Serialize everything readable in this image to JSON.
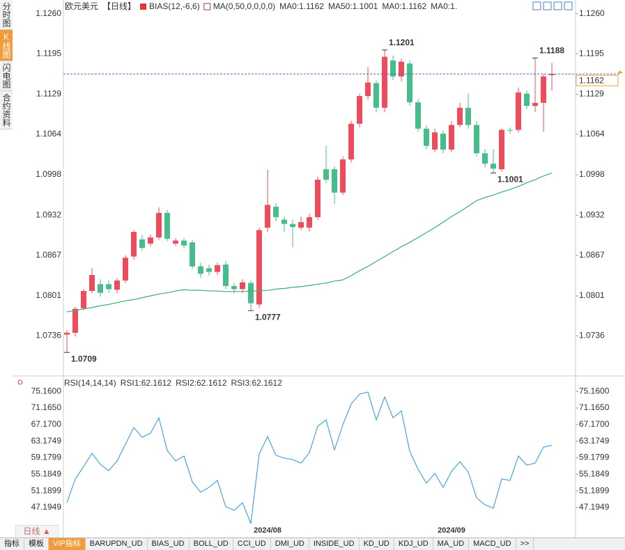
{
  "ui": {
    "sidebar": [
      "分时图",
      "K线图",
      "闪电图",
      "合约资料"
    ],
    "period": "日线 ▲",
    "tabs": [
      "指标",
      "模板",
      "VIP指标",
      "BARUPDN_UD",
      "BIAS_UD",
      "BOLL_UD",
      "CCI_UD",
      "DMI_UD",
      "INSIDE_UD",
      "KD_UD",
      "KDJ_UD",
      "MA_UD",
      "MACD_UD",
      ">>"
    ]
  },
  "chart_data": [
    {
      "type": "candlestick",
      "title": "欧元美元",
      "period": "【日线】",
      "indicators": [
        "BIAS(12,-6,6)",
        "MA(0,50,0,0,0,0)"
      ],
      "legend": [
        {
          "text": "MA0:1.1162",
          "color": "#4a90d9"
        },
        {
          "text": "MA50:1.1001",
          "color": "#3aae86"
        },
        {
          "text": "MA0:1.1162",
          "color": "#5aaae6"
        },
        {
          "text": "MA0:1.",
          "color": "#f0a050"
        }
      ],
      "categories": [
        null,
        null,
        null,
        null,
        null,
        null,
        null,
        null,
        null,
        null,
        null,
        null,
        null,
        null,
        null,
        null,
        null,
        null,
        null,
        null,
        null,
        null,
        null,
        null,
        "2024/08",
        null,
        null,
        null,
        null,
        null,
        null,
        null,
        null,
        null,
        null,
        null,
        null,
        null,
        null,
        null,
        null,
        null,
        null,
        null,
        null,
        null,
        "2024/09",
        null,
        null,
        null,
        null,
        null,
        null,
        null,
        null,
        null,
        null,
        null,
        null
      ],
      "open": [
        1.0738,
        1.0741,
        1.0781,
        1.0809,
        1.082,
        1.082,
        1.0811,
        1.0826,
        1.0865,
        1.0893,
        1.0886,
        1.0896,
        1.0936,
        1.0886,
        1.0891,
        1.0888,
        1.0849,
        1.0846,
        1.084,
        1.0852,
        1.0817,
        1.0812,
        1.0822,
        1.0787,
        1.0912,
        1.0946,
        1.0925,
        1.0918,
        1.0912,
        1.0912,
        1.0929,
        1.1007,
        1.1007,
        1.0969,
        1.1023,
        1.1081,
        1.1126,
        1.1147,
        1.1107,
        1.1184,
        1.1158,
        1.1179,
        1.1116,
        1.1073,
        1.1039,
        1.1065,
        1.1039,
        1.1079,
        1.1107,
        1.1079,
        1.1033,
        1.1016,
        1.1007,
        1.1071,
        1.1071,
        1.113,
        1.111,
        1.1115,
        1.116
      ],
      "high": [
        1.0745,
        1.0783,
        1.0812,
        1.0846,
        1.0828,
        1.0826,
        1.083,
        1.0867,
        1.0908,
        1.09,
        1.0901,
        1.0945,
        1.0941,
        1.0895,
        1.0895,
        1.0892,
        1.0855,
        1.0852,
        1.0855,
        1.0858,
        1.0822,
        1.0828,
        1.0826,
        1.0912,
        1.1006,
        1.0952,
        1.093,
        1.0925,
        1.093,
        1.0935,
        1.0995,
        1.1045,
        1.1012,
        1.1028,
        1.1086,
        1.113,
        1.1173,
        1.1152,
        1.1201,
        1.1192,
        1.1187,
        1.1184,
        1.1121,
        1.1078,
        1.1073,
        1.107,
        1.1085,
        1.1115,
        1.113,
        1.1085,
        1.104,
        1.104,
        1.1073,
        1.1075,
        1.114,
        1.1135,
        1.1188,
        1.1162,
        1.118
      ],
      "low": [
        1.0709,
        1.0735,
        1.0778,
        1.0805,
        1.08,
        1.0806,
        1.0805,
        1.0822,
        1.086,
        1.0875,
        1.0882,
        1.0892,
        1.089,
        1.0882,
        1.0878,
        1.0845,
        1.083,
        1.0834,
        1.0835,
        1.0812,
        1.0805,
        1.0806,
        1.0777,
        1.0781,
        1.0905,
        1.0922,
        1.0905,
        1.088,
        1.0908,
        1.0906,
        1.0925,
        1.0985,
        1.095,
        1.0965,
        1.1018,
        1.1075,
        1.112,
        1.11,
        1.11,
        1.1152,
        1.115,
        1.111,
        1.1068,
        1.104,
        1.1035,
        1.1033,
        1.1035,
        1.1075,
        1.1073,
        1.1028,
        1.101,
        1.1001,
        1.1003,
        1.1065,
        1.1067,
        1.1105,
        1.11,
        1.1068,
        1.1135
      ],
      "close": [
        1.0741,
        1.078,
        1.0809,
        1.0835,
        1.0806,
        1.0812,
        1.0826,
        1.0863,
        1.0905,
        1.0879,
        1.0896,
        1.0936,
        1.0894,
        1.0891,
        1.0883,
        1.0849,
        1.0837,
        1.084,
        1.0851,
        1.0817,
        1.0812,
        1.0823,
        1.0789,
        1.0908,
        1.0949,
        1.0929,
        1.0918,
        1.0913,
        1.0921,
        1.0929,
        1.099,
        1.099,
        1.0969,
        1.1023,
        1.1081,
        1.1126,
        1.1148,
        1.1107,
        1.119,
        1.1158,
        1.1182,
        1.1116,
        1.1073,
        1.1045,
        1.1067,
        1.1039,
        1.1079,
        1.1107,
        1.1079,
        1.1033,
        1.1016,
        1.1008,
        1.1071,
        1.107,
        1.1132,
        1.111,
        1.1115,
        1.1158,
        1.1162
      ],
      "up_color": "#eb4d5c",
      "down_color": "#48bd8b",
      "series": [
        {
          "color": "#3aae6e",
          "values": [
            1.0775,
            1.0777,
            1.078,
            1.0782,
            1.0785,
            1.0787,
            1.079,
            1.0793,
            1.0795,
            1.0798,
            1.0801,
            1.0804,
            1.0806,
            1.0809,
            1.0811,
            1.081,
            1.081,
            1.0809,
            1.0809,
            1.0808,
            1.0808,
            1.0808,
            1.0809,
            1.0809,
            1.081,
            1.0812,
            1.0813,
            1.0815,
            1.0816,
            1.0818,
            1.082,
            1.0822,
            1.0825,
            1.0827,
            1.0834,
            1.0842,
            1.0849,
            1.0857,
            1.0865,
            1.0873,
            1.0881,
            1.0888,
            1.0896,
            1.0904,
            1.0912,
            1.0921,
            1.093,
            1.0938,
            1.0947,
            1.0956,
            1.0961,
            1.0965,
            1.097,
            1.0974,
            1.0979,
            1.0985,
            1.099,
            1.0996,
            1.1001
          ]
        }
      ],
      "ylim": [
        1.0673,
        1.1271
      ],
      "yticks": [
        {
          "value": 1.126,
          "label": "1.1260"
        },
        1.1195,
        1.1129,
        1.1064,
        1.0998,
        1.0932,
        1.0867,
        1.0801,
        1.0736
      ],
      "annotations": [
        1.0709,
        1.0777,
        1.1201,
        1.1001,
        1.1188
      ],
      "last_price": 1.1162
    },
    {
      "type": "line",
      "title": "RSI(14,14,14)",
      "legend": [
        {
          "text": "RSI1:62.1612",
          "color": "#4aa3df"
        },
        {
          "text": "RSI2:62.1612",
          "color": "#5ab0e8"
        },
        {
          "text": "RSI3:62.1612",
          "color": "#5ab0e8"
        }
      ],
      "series": [
        {
          "color": "#4aa3df",
          "values": [
            48.37,
            54.06,
            57.08,
            60.26,
            57.58,
            56.07,
            58.41,
            62.43,
            66.45,
            64.11,
            65.11,
            68.8,
            60.93,
            58.41,
            59.59,
            53.39,
            50.88,
            52.05,
            53.73,
            47.36,
            46.53,
            48.37,
            43.34,
            60.09,
            64.28,
            59.76,
            59.09,
            58.75,
            57.91,
            60.43,
            66.79,
            68.29,
            61.09,
            67.12,
            72.15,
            74.49,
            74.99,
            68.29,
            73.82,
            68.8,
            70.47,
            60.76,
            56.41,
            53.06,
            55.4,
            52.05,
            55.9,
            58.25,
            55.74,
            49.54,
            47.87,
            47.03,
            54.06,
            53.73,
            59.59,
            57.41,
            57.91,
            61.76,
            62.16
          ]
        }
      ],
      "ylim": [
        42.0,
        76.2
      ],
      "yticks": [
        {
          "value": 75.16,
          "label": "75.1600"
        },
        {
          "value": 71.165,
          "label": "71.1650"
        },
        {
          "value": 67.17,
          "label": "67.1700"
        },
        63.1749,
        59.1799,
        55.1849,
        51.1899,
        47.1949
      ]
    }
  ]
}
